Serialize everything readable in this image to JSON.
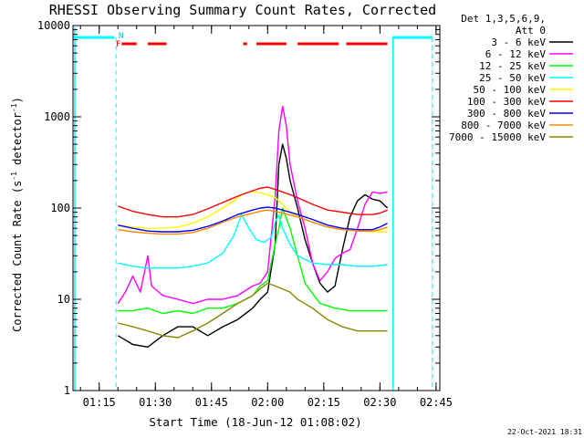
{
  "chart_data": {
    "type": "line",
    "title": "RHESSI Observing Summary Count Rates, Corrected",
    "xlabel": "Start Time (18-Jun-12 01:08:02)",
    "ylabel_main": "Corrected Count Rate (s",
    "ylabel_exp1": "-1",
    "ylabel_mid": " detector",
    "ylabel_exp2": "-1",
    "ylabel_end": ")",
    "yscale": "log",
    "ylim": [
      1,
      10000
    ],
    "xlim_minutes": [
      68,
      166
    ],
    "x_tick_labels": [
      {
        "minutes": 75,
        "label": "01:15"
      },
      {
        "minutes": 90,
        "label": "01:30"
      },
      {
        "minutes": 105,
        "label": "01:45"
      },
      {
        "minutes": 120,
        "label": "02:00"
      },
      {
        "minutes": 135,
        "label": "02:15"
      },
      {
        "minutes": 150,
        "label": "02:30"
      },
      {
        "minutes": 165,
        "label": "02:45"
      }
    ],
    "y_tick_labels": [
      {
        "value": 1,
        "label": "1"
      },
      {
        "value": 10,
        "label": "10"
      },
      {
        "value": 100,
        "label": "100"
      },
      {
        "value": 1000,
        "label": "1000"
      },
      {
        "value": 10000,
        "label": "10000"
      }
    ],
    "legend_position": "top-right outside",
    "legend_header": [
      "Det 1,3,5,6,9,",
      "Att 0"
    ],
    "series": [
      {
        "name": "3 - 6 keV",
        "color": "#000000",
        "points": [
          [
            80,
            4
          ],
          [
            84,
            3.2
          ],
          [
            88,
            3
          ],
          [
            92,
            4
          ],
          [
            96,
            5
          ],
          [
            100,
            5
          ],
          [
            104,
            4
          ],
          [
            108,
            5
          ],
          [
            112,
            6
          ],
          [
            116,
            8
          ],
          [
            118,
            10
          ],
          [
            120,
            12
          ],
          [
            122,
            40
          ],
          [
            123,
            300
          ],
          [
            124,
            500
          ],
          [
            125,
            350
          ],
          [
            126,
            200
          ],
          [
            128,
            100
          ],
          [
            130,
            45
          ],
          [
            132,
            25
          ],
          [
            134,
            15
          ],
          [
            136,
            12
          ],
          [
            138,
            14
          ],
          [
            140,
            35
          ],
          [
            142,
            80
          ],
          [
            144,
            120
          ],
          [
            146,
            140
          ],
          [
            148,
            125
          ],
          [
            150,
            120
          ],
          [
            152,
            100
          ]
        ]
      },
      {
        "name": "6 - 12 keV",
        "color": "#ff00ff",
        "points": [
          [
            80,
            9
          ],
          [
            82,
            12
          ],
          [
            84,
            18
          ],
          [
            86,
            12
          ],
          [
            88,
            30
          ],
          [
            89,
            14
          ],
          [
            92,
            11
          ],
          [
            96,
            10
          ],
          [
            100,
            9
          ],
          [
            104,
            10
          ],
          [
            108,
            10
          ],
          [
            112,
            11
          ],
          [
            116,
            14
          ],
          [
            118,
            15
          ],
          [
            120,
            20
          ],
          [
            122,
            130
          ],
          [
            123,
            700
          ],
          [
            124,
            1300
          ],
          [
            125,
            800
          ],
          [
            126,
            300
          ],
          [
            128,
            120
          ],
          [
            130,
            60
          ],
          [
            132,
            25
          ],
          [
            134,
            16
          ],
          [
            136,
            20
          ],
          [
            138,
            28
          ],
          [
            140,
            32
          ],
          [
            142,
            35
          ],
          [
            144,
            60
          ],
          [
            146,
            110
          ],
          [
            148,
            150
          ],
          [
            150,
            145
          ],
          [
            152,
            150
          ]
        ]
      },
      {
        "name": "12 - 25 keV",
        "color": "#00ff00",
        "points": [
          [
            80,
            7.5
          ],
          [
            84,
            7.5
          ],
          [
            88,
            8
          ],
          [
            92,
            7
          ],
          [
            96,
            7.5
          ],
          [
            100,
            7
          ],
          [
            104,
            8
          ],
          [
            108,
            8
          ],
          [
            112,
            9
          ],
          [
            116,
            11
          ],
          [
            118,
            14
          ],
          [
            120,
            16
          ],
          [
            122,
            40
          ],
          [
            123,
            60
          ],
          [
            124,
            100
          ],
          [
            126,
            60
          ],
          [
            128,
            30
          ],
          [
            130,
            15
          ],
          [
            134,
            9
          ],
          [
            138,
            8
          ],
          [
            142,
            7.5
          ],
          [
            146,
            7.5
          ],
          [
            150,
            7.5
          ],
          [
            152,
            7.5
          ]
        ]
      },
      {
        "name": "25 - 50 keV",
        "color": "#00ffff",
        "points": [
          [
            80,
            25
          ],
          [
            84,
            23
          ],
          [
            88,
            22
          ],
          [
            92,
            22
          ],
          [
            96,
            22
          ],
          [
            100,
            23
          ],
          [
            104,
            25
          ],
          [
            108,
            32
          ],
          [
            111,
            50
          ],
          [
            113,
            85
          ],
          [
            115,
            60
          ],
          [
            117,
            45
          ],
          [
            119,
            42
          ],
          [
            121,
            48
          ],
          [
            122,
            70
          ],
          [
            123,
            85
          ],
          [
            124,
            60
          ],
          [
            126,
            40
          ],
          [
            128,
            30
          ],
          [
            132,
            25
          ],
          [
            136,
            24
          ],
          [
            140,
            24
          ],
          [
            144,
            23
          ],
          [
            148,
            23
          ],
          [
            152,
            24
          ]
        ]
      },
      {
        "name": "50 - 100 keV",
        "color": "#ffff00",
        "points": [
          [
            80,
            65
          ],
          [
            84,
            62
          ],
          [
            88,
            60
          ],
          [
            92,
            60
          ],
          [
            96,
            62
          ],
          [
            100,
            68
          ],
          [
            104,
            80
          ],
          [
            108,
            100
          ],
          [
            111,
            120
          ],
          [
            113,
            140
          ],
          [
            115,
            150
          ],
          [
            117,
            150
          ],
          [
            120,
            140
          ],
          [
            122,
            130
          ],
          [
            124,
            110
          ],
          [
            126,
            90
          ],
          [
            128,
            80
          ],
          [
            132,
            70
          ],
          [
            136,
            62
          ],
          [
            140,
            58
          ],
          [
            144,
            56
          ],
          [
            148,
            55
          ],
          [
            152,
            55
          ]
        ]
      },
      {
        "name": "100 - 300 keV",
        "color": "#ff0000",
        "points": [
          [
            80,
            105
          ],
          [
            84,
            92
          ],
          [
            88,
            85
          ],
          [
            92,
            80
          ],
          [
            96,
            80
          ],
          [
            100,
            85
          ],
          [
            104,
            98
          ],
          [
            108,
            115
          ],
          [
            112,
            135
          ],
          [
            116,
            155
          ],
          [
            118,
            165
          ],
          [
            120,
            170
          ],
          [
            122,
            160
          ],
          [
            124,
            150
          ],
          [
            126,
            140
          ],
          [
            128,
            130
          ],
          [
            132,
            110
          ],
          [
            136,
            95
          ],
          [
            140,
            90
          ],
          [
            144,
            85
          ],
          [
            148,
            85
          ],
          [
            150,
            88
          ],
          [
            152,
            95
          ]
        ]
      },
      {
        "name": "300 - 800 keV",
        "color": "#0000ff",
        "points": [
          [
            80,
            65
          ],
          [
            84,
            60
          ],
          [
            88,
            56
          ],
          [
            92,
            55
          ],
          [
            96,
            55
          ],
          [
            100,
            57
          ],
          [
            104,
            63
          ],
          [
            108,
            72
          ],
          [
            112,
            85
          ],
          [
            116,
            95
          ],
          [
            118,
            100
          ],
          [
            120,
            102
          ],
          [
            122,
            100
          ],
          [
            124,
            95
          ],
          [
            126,
            90
          ],
          [
            128,
            85
          ],
          [
            132,
            75
          ],
          [
            136,
            65
          ],
          [
            140,
            60
          ],
          [
            144,
            58
          ],
          [
            148,
            58
          ],
          [
            150,
            62
          ],
          [
            152,
            68
          ]
        ]
      },
      {
        "name": "800 - 7000 keV",
        "color": "#ff8800",
        "points": [
          [
            80,
            58
          ],
          [
            84,
            55
          ],
          [
            88,
            53
          ],
          [
            92,
            52
          ],
          [
            96,
            52
          ],
          [
            100,
            54
          ],
          [
            104,
            60
          ],
          [
            108,
            70
          ],
          [
            112,
            80
          ],
          [
            116,
            88
          ],
          [
            118,
            92
          ],
          [
            120,
            95
          ],
          [
            122,
            92
          ],
          [
            124,
            88
          ],
          [
            126,
            84
          ],
          [
            128,
            80
          ],
          [
            132,
            70
          ],
          [
            136,
            62
          ],
          [
            140,
            58
          ],
          [
            144,
            56
          ],
          [
            148,
            56
          ],
          [
            150,
            58
          ],
          [
            152,
            62
          ]
        ]
      },
      {
        "name": "7000 - 15000 keV",
        "color": "#888800",
        "points": [
          [
            80,
            5.5
          ],
          [
            84,
            5
          ],
          [
            88,
            4.5
          ],
          [
            92,
            4
          ],
          [
            96,
            3.8
          ],
          [
            100,
            4.5
          ],
          [
            104,
            5.5
          ],
          [
            108,
            7
          ],
          [
            112,
            9
          ],
          [
            116,
            11
          ],
          [
            118,
            13
          ],
          [
            120,
            15
          ],
          [
            122,
            14
          ],
          [
            124,
            13
          ],
          [
            126,
            12
          ],
          [
            128,
            10
          ],
          [
            132,
            8
          ],
          [
            136,
            6
          ],
          [
            140,
            5
          ],
          [
            144,
            4.5
          ],
          [
            148,
            4.5
          ],
          [
            150,
            4.5
          ],
          [
            152,
            4.5
          ]
        ]
      }
    ],
    "annotations": {
      "N_label": "N",
      "F_label": "F"
    },
    "timestamp": "22-Oct-2021 18:31"
  }
}
